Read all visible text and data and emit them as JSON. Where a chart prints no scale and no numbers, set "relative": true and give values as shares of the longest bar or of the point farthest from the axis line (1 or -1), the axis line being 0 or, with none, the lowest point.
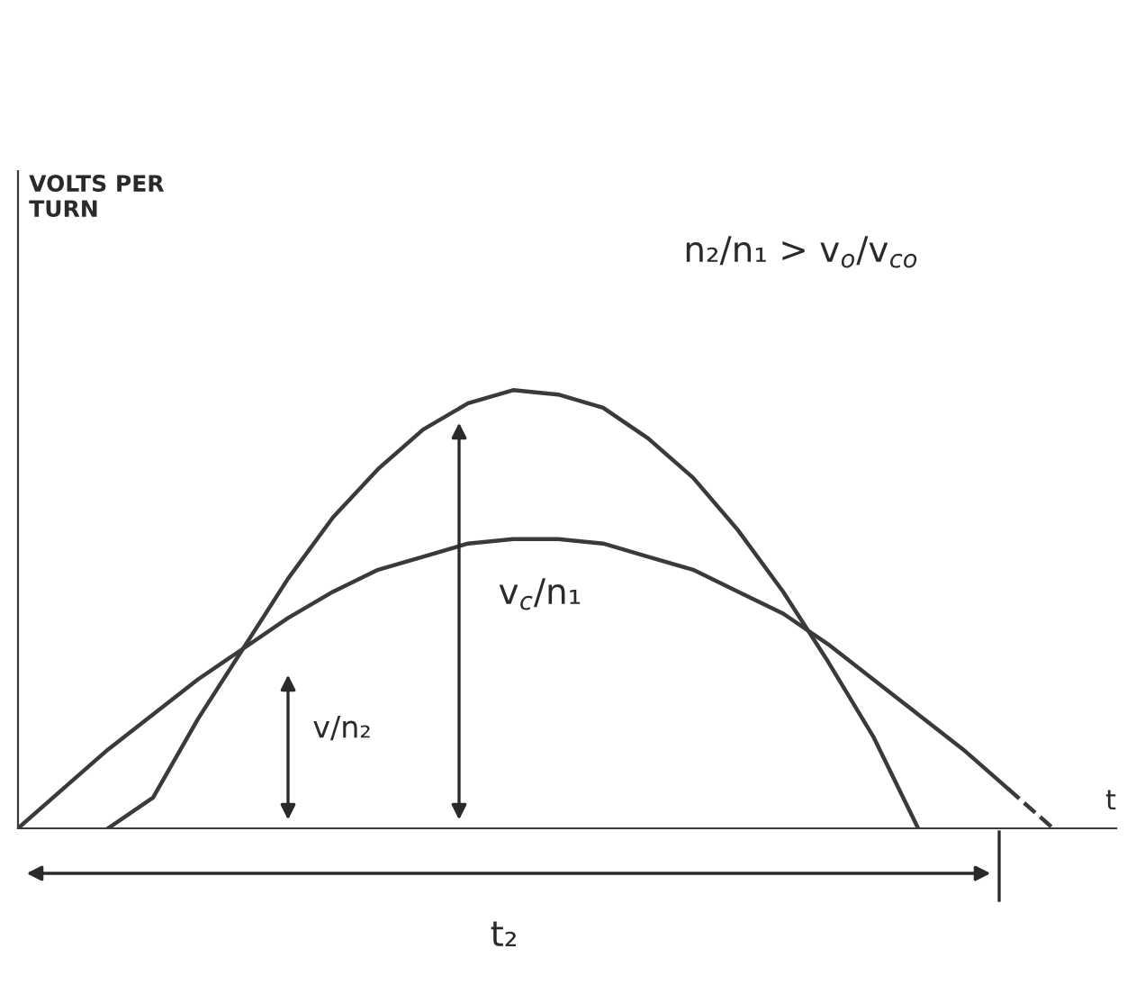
{
  "chart_data": {
    "type": "line",
    "relative": true,
    "xlabel": "t",
    "categories": [
      null,
      null,
      null,
      null,
      null,
      null,
      null,
      null,
      null,
      null,
      null,
      null,
      null,
      null,
      null,
      null,
      null,
      null,
      null,
      null,
      null,
      null,
      null,
      null,
      null
    ],
    "series": [
      {
        "color": "#3a3a3a",
        "line_style": "solid",
        "values": [
          null,
          null,
          0,
          0.07,
          0.25,
          0.41,
          0.57,
          0.71,
          0.82,
          0.91,
          0.97,
          1.0,
          0.99,
          0.96,
          0.89,
          0.8,
          0.68,
          0.54,
          0.38,
          0.21,
          0,
          null,
          null,
          null,
          null
        ]
      },
      {
        "color": "#3a3a3a",
        "line_style": "solid",
        "values": [
          0,
          0.09,
          0.18,
          0.26,
          0.34,
          0.41,
          0.48,
          0.54,
          0.59,
          0.62,
          0.65,
          0.66,
          0.66,
          0.65,
          0.62,
          0.59,
          0.54,
          0.49,
          0.42,
          0.34,
          0.26,
          0.18,
          0.09,
          null,
          null
        ]
      },
      {
        "color": "#3a3a3a",
        "line_style": "dashed",
        "values": [
          null,
          null,
          null,
          null,
          null,
          null,
          null,
          null,
          null,
          null,
          null,
          null,
          null,
          null,
          null,
          null,
          null,
          null,
          null,
          null,
          null,
          null,
          0.09,
          0,
          null
        ]
      }
    ],
    "marker": "none",
    "legend": false,
    "annotations": [
      "VOLTS PER\nTURN",
      "n₂/n₁ > v$_{o}$/v$_{co}$",
      "v/n₂",
      "v$_{c}$/n₁",
      "t₂"
    ]
  }
}
